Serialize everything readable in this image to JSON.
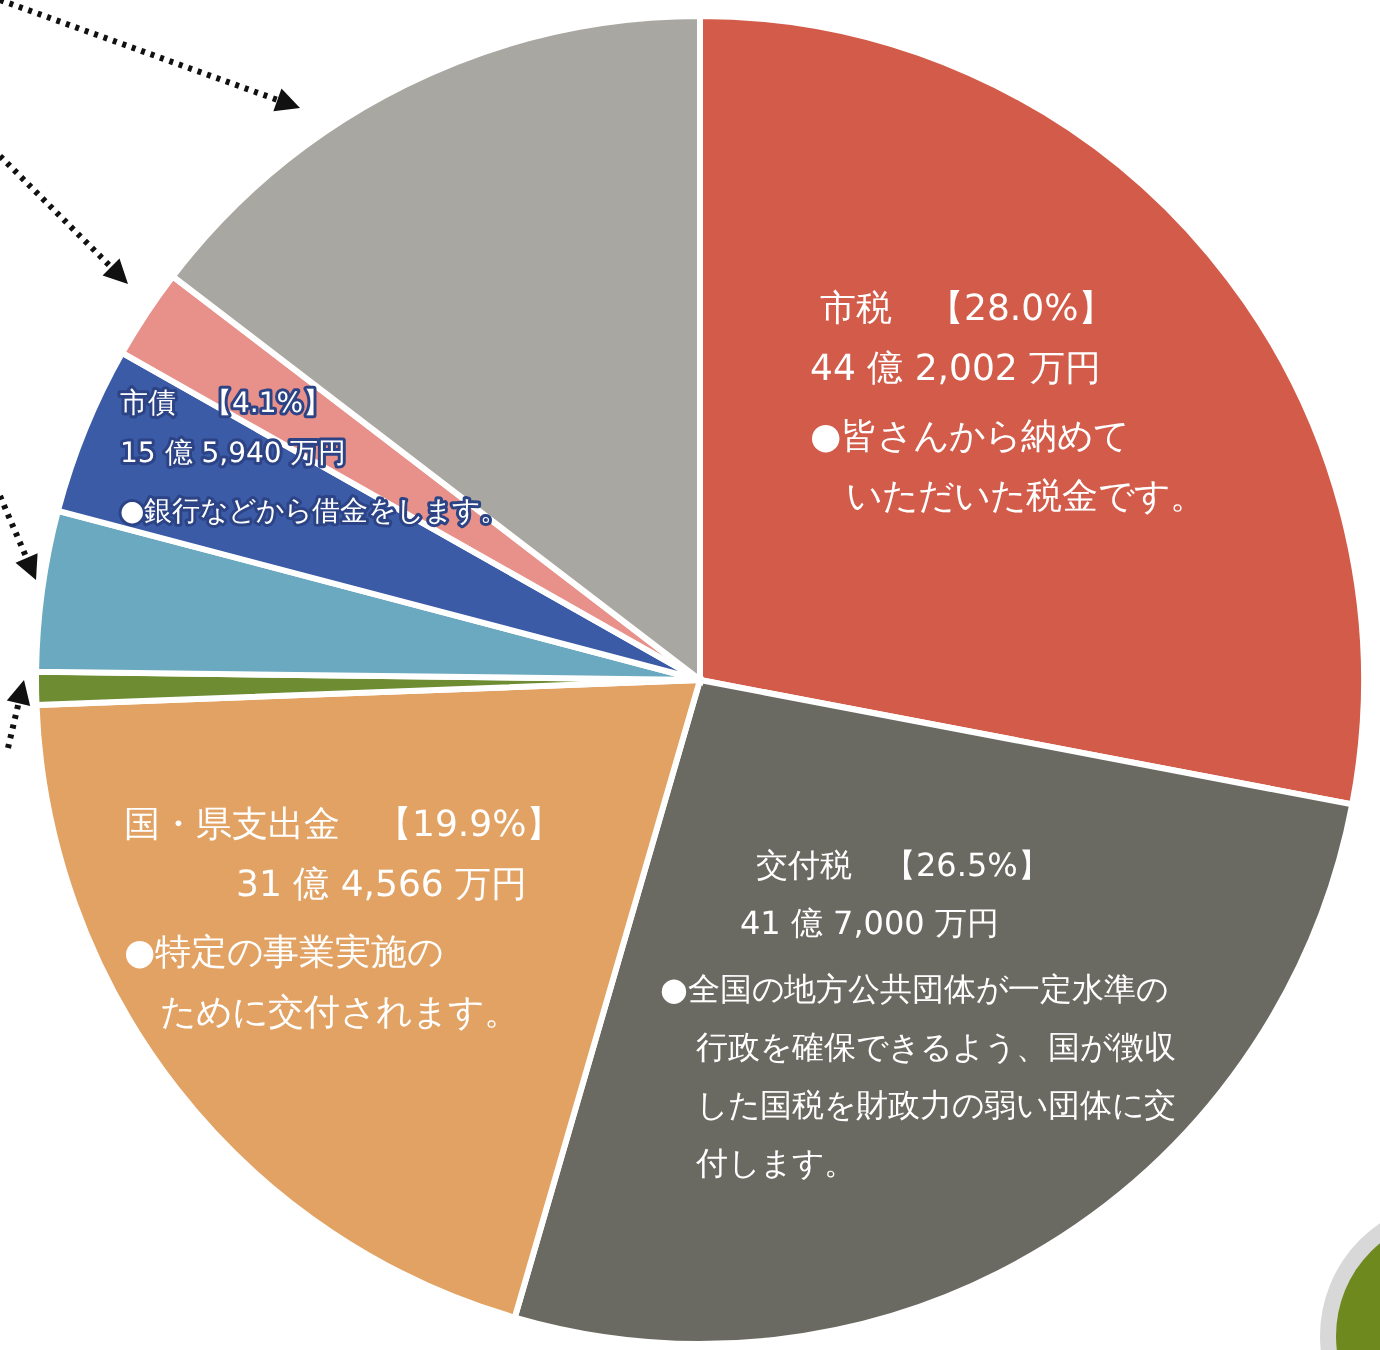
{
  "chart_data": {
    "type": "pie",
    "categories": [
      "市税",
      "交付税",
      "国・県支出金",
      null,
      null,
      "市債",
      null,
      null
    ],
    "values": [
      28.0,
      26.5,
      19.9,
      0.8,
      3.9,
      4.1,
      2.2,
      14.6
    ],
    "colors": [
      "#d35b49",
      "#6b6a62",
      "#e2a263",
      "#6e8c32",
      "#6aa9bf",
      "#3b5ba6",
      "#e8918a",
      "#a9a7a1"
    ],
    "value_labels": [
      "【28.0%】",
      "【26.5%】",
      "【19.9%】",
      null,
      null,
      "【4.1%】",
      null,
      null
    ],
    "annotations": [
      "44 億 2,002 万円",
      "●皆さんから納めて",
      "いただいた税金です。",
      "41 億 7,000 万円",
      "●全国の地方公共団体が一定水準の",
      "行政を確保できるよう、国が徴収",
      "した国税を財政力の弱い団体に交",
      "付します。",
      "31 億 4,566 万円",
      "●特定の事業実施の",
      "ために交付されます。",
      "15 億 5,940 万円",
      "●銀行などから借金をします。"
    ]
  }
}
